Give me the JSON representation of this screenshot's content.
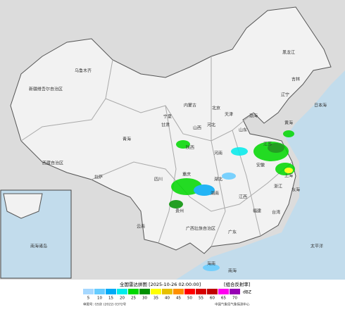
{
  "map": {
    "labels": [
      "新疆维吾尔自治区",
      "乌鲁木齐",
      "西藏自治区",
      "拉萨",
      "青海",
      "甘肃",
      "内蒙古",
      "黑龙江",
      "吉林",
      "辽宁",
      "北京",
      "天津",
      "河北",
      "山西",
      "陕西",
      "宁夏",
      "河南",
      "山东",
      "江苏",
      "安徽",
      "湖北",
      "四川",
      "重庆",
      "湖南",
      "江西",
      "浙江",
      "上海",
      "福建",
      "贵州",
      "云南",
      "广西壮族自治区",
      "广东",
      "台湾",
      "海南",
      "渤海",
      "黄海",
      "东海",
      "南海",
      "日本海",
      "太平洋",
      "南海诸岛"
    ]
  },
  "legend": {
    "title": "全国雷达拼图 [2025-10-26 02:00:00]",
    "product": "[组合反射率]",
    "unit": "dBZ",
    "ticks": [
      5,
      10,
      15,
      20,
      25,
      30,
      35,
      40,
      45,
      50,
      55,
      60,
      65,
      70
    ],
    "colors": [
      "#a6d8ff",
      "#66ccff",
      "#00aaf6",
      "#00ecec",
      "#00d800",
      "#019000",
      "#ffff00",
      "#e7c000",
      "#ff9000",
      "#ff0000",
      "#d60000",
      "#c00000",
      "#ff00f0",
      "#9600b4"
    ],
    "approval": "审图号: GS京 (2022) 0372号",
    "source": "中国气象局气象探测中心"
  }
}
